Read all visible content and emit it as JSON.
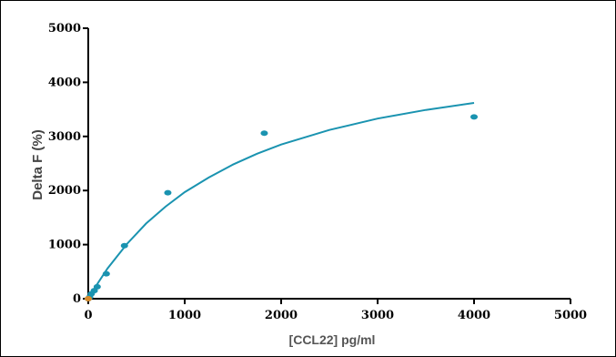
{
  "chart_data": {
    "type": "scatter",
    "xlabel": "[CCL22] pg/ml",
    "ylabel": "Delta F (%)",
    "xlim": [
      0,
      5000
    ],
    "ylim": [
      0,
      5000
    ],
    "x_ticks": [
      "0",
      "1000",
      "2000",
      "3000",
      "4000",
      "5000"
    ],
    "y_ticks": [
      "0",
      "1000",
      "2000",
      "3000",
      "4000",
      "5000"
    ],
    "grid": false,
    "series": [
      {
        "kind": "points",
        "color": "#1a93b0",
        "x": [
          0,
          15,
          31,
          62,
          93,
          187,
          375,
          825,
          1825,
          4000
        ],
        "y": [
          0,
          30,
          90,
          150,
          220,
          460,
          980,
          1960,
          3060,
          3360
        ]
      },
      {
        "kind": "fit-curve",
        "color": "#1a93b0",
        "x": [
          0,
          100,
          200,
          400,
          600,
          800,
          1000,
          1250,
          1500,
          1750,
          2000,
          2500,
          3000,
          3500,
          4000
        ],
        "y": [
          0,
          290,
          560,
          1010,
          1390,
          1700,
          1970,
          2240,
          2480,
          2680,
          2850,
          3120,
          3330,
          3490,
          3620
        ]
      },
      {
        "kind": "points",
        "color": "#d98a2a",
        "x": [
          0
        ],
        "y": [
          0
        ]
      }
    ]
  }
}
